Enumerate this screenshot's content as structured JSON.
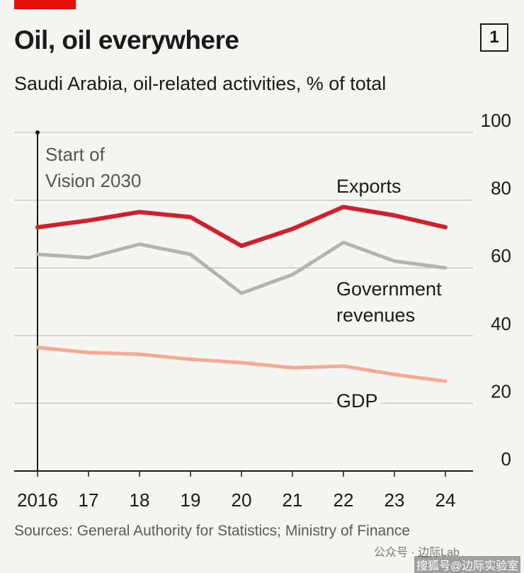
{
  "header": {
    "title": "Oil, oil everywhere",
    "badge": "1",
    "subtitle": "Saudi Arabia, oil-related activities, % of total"
  },
  "annotation": {
    "line1": "Start of",
    "line2": "Vision 2030"
  },
  "source": "Sources: General Authority for Statistics; Ministry of Finance",
  "watermark": {
    "line1": "公众号 · 边际Lab",
    "line2": "搜狐号@边际实验室"
  },
  "colors": {
    "accent": "#e3120b",
    "exports": "#d0202b",
    "government_revenues": "#b3b4aa",
    "gdp": "#f3a993",
    "grid": "#c8c8c8",
    "axis": "#1a1a1a"
  },
  "chart_data": {
    "type": "line",
    "x": [
      2016,
      2017,
      2018,
      2019,
      2020,
      2021,
      2022,
      2023,
      2024
    ],
    "x_tick_labels": [
      "2016",
      "17",
      "18",
      "19",
      "20",
      "21",
      "22",
      "23",
      "24"
    ],
    "ylim": [
      0,
      100
    ],
    "y_ticks": [
      0,
      20,
      40,
      60,
      80,
      100
    ],
    "y_axis_side": "right",
    "grid": true,
    "series": [
      {
        "name": "Exports",
        "label_lines": [
          "Exports"
        ],
        "color_key": "exports",
        "values": [
          72,
          74,
          76.5,
          75,
          66.5,
          71.5,
          78,
          75.5,
          72
        ]
      },
      {
        "name": "Government revenues",
        "label_lines": [
          "Government",
          "revenues"
        ],
        "color_key": "government_revenues",
        "values": [
          64,
          63,
          67,
          64,
          52.5,
          58,
          67.5,
          62,
          60
        ]
      },
      {
        "name": "GDP",
        "label_lines": [
          "GDP"
        ],
        "color_key": "gdp",
        "values": [
          36.5,
          35,
          34.5,
          33,
          32,
          30.5,
          31,
          28.5,
          26.5
        ]
      }
    ],
    "annotations": [
      {
        "x": 2016,
        "lines": [
          "Start of",
          "Vision 2030"
        ]
      }
    ]
  }
}
